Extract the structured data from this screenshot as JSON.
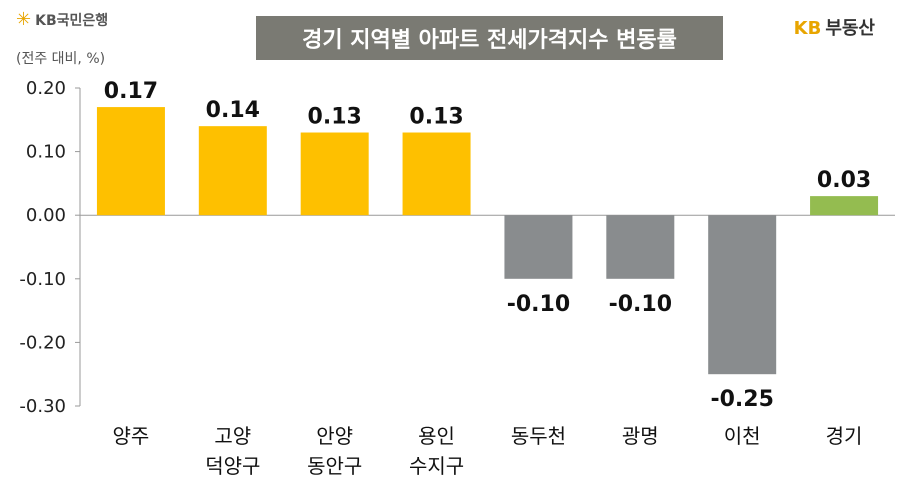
{
  "header": {
    "brand_left": "KB국민은행",
    "brand_left_icon": "kb-star-icon",
    "title": "경기 지역별 아파트 전세가격지수 변동률",
    "brand_right_kb": "KB",
    "brand_right_text": "부동산"
  },
  "colors": {
    "positive": "#fec000",
    "negative": "#898c8e",
    "average": "#94bc50",
    "title_bg": "#7a7a73"
  },
  "chart_data": {
    "type": "bar",
    "title": "경기 지역별 아파트 전세가격지수 변동률",
    "unit_label": "(전주 대비, %)",
    "categories": [
      [
        "양주"
      ],
      [
        "고양",
        "덕양구"
      ],
      [
        "안양",
        "동안구"
      ],
      [
        "용인",
        "수지구"
      ],
      [
        "동두천"
      ],
      [
        "광명"
      ],
      [
        "이천"
      ],
      [
        "경기"
      ]
    ],
    "values": [
      0.17,
      0.14,
      0.13,
      0.13,
      -0.1,
      -0.1,
      -0.25,
      0.03
    ],
    "value_labels": [
      "0.17",
      "0.14",
      "0.13",
      "0.13",
      "-0.10",
      "-0.10",
      "-0.25",
      "0.03"
    ],
    "bar_color_keys": [
      "positive",
      "positive",
      "positive",
      "positive",
      "negative",
      "negative",
      "negative",
      "average"
    ],
    "ylim": [
      -0.3,
      0.2
    ],
    "yticks": [
      0.2,
      0.1,
      0.0,
      -0.1,
      -0.2,
      -0.3
    ],
    "ytick_labels": [
      "0.20",
      "0.10",
      "0.00",
      "-0.10",
      "-0.20",
      "-0.30"
    ],
    "grid": false,
    "legend": "none"
  }
}
